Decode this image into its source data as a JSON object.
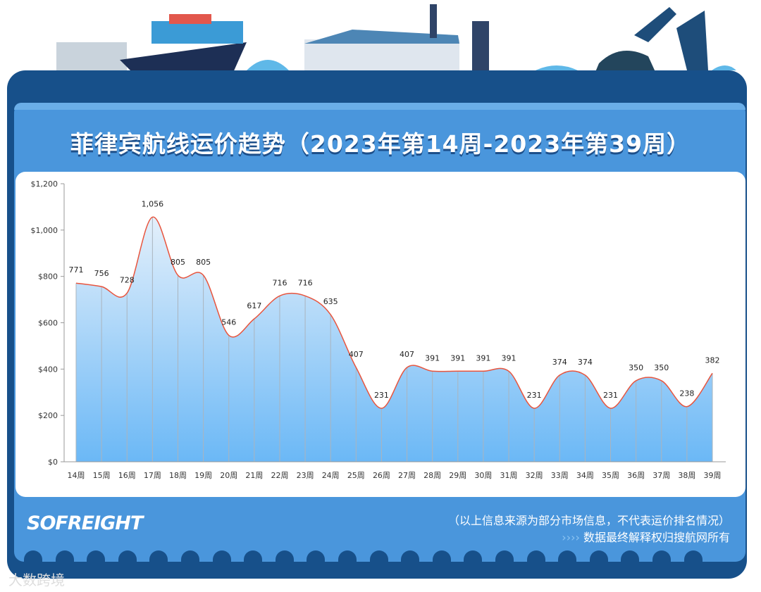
{
  "header": {
    "title": "菲律宾航线运价趋势（2023年第14周-2023年第39周）"
  },
  "footer": {
    "logo": "SOFREIGHT",
    "note": "（以上信息来源为部分市场信息，不代表运价排名情况）",
    "arrows": "››››",
    "rights": "数据最终解释权归搜航网所有",
    "watermark": "大数跨境"
  },
  "colors": {
    "frame": "#17508a",
    "panel": "#4a96dc",
    "line": "#e8553e",
    "fill_top": "#e4f0fb",
    "fill_bottom": "#6bb8f6"
  },
  "chart_data": {
    "type": "area",
    "categories": [
      "14周",
      "15周",
      "16周",
      "17周",
      "18周",
      "19周",
      "20周",
      "21周",
      "22周",
      "23周",
      "24周",
      "25周",
      "26周",
      "27周",
      "28周",
      "29周",
      "30周",
      "31周",
      "32周",
      "33周",
      "34周",
      "35周",
      "36周",
      "37周",
      "38周",
      "39周"
    ],
    "values": [
      771,
      756,
      728,
      1056,
      805,
      805,
      546,
      617,
      716,
      716,
      635,
      407,
      231,
      407,
      391,
      391,
      391,
      391,
      231,
      374,
      374,
      231,
      350,
      350,
      238,
      382
    ],
    "data_labels": [
      "771",
      "756",
      "728",
      "1,056",
      "805",
      "805",
      "546",
      "617",
      "716",
      "716",
      "635",
      "407",
      "231",
      "407",
      "391",
      "391",
      "391",
      "391",
      "231",
      "374",
      "374",
      "231",
      "350",
      "350",
      "238",
      "382"
    ],
    "yticks": [
      "$0",
      "$200",
      "$400",
      "$600",
      "$800",
      "$1,000",
      "$1,200"
    ],
    "ytick_values": [
      0,
      200,
      400,
      600,
      800,
      1000,
      1200
    ],
    "ylim": [
      0,
      1200
    ],
    "smooth": true,
    "grid": false
  }
}
